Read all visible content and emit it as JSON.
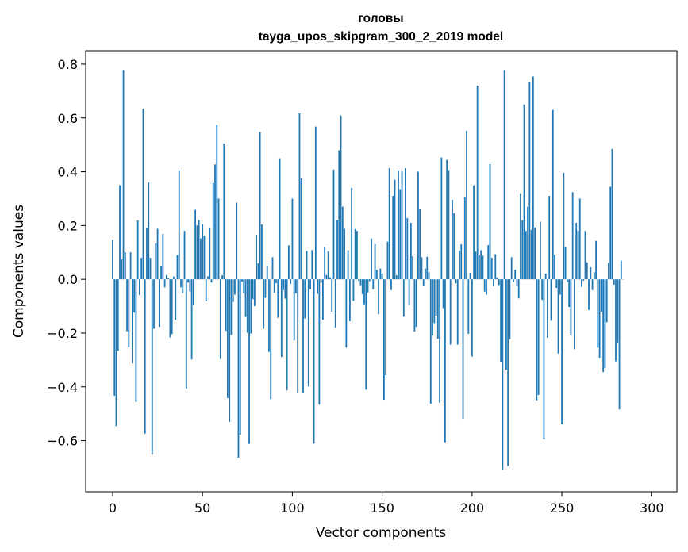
{
  "chart_data": {
    "type": "bar",
    "title_line1": "головы",
    "title_line2": "tayga_upos_skipgram_300_2_2019 model",
    "xlabel": "Vector components",
    "ylabel": "Components values",
    "xlim": [
      -15,
      314
    ],
    "ylim": [
      -0.79,
      0.85
    ],
    "xticks": [
      0,
      50,
      100,
      150,
      200,
      250,
      300
    ],
    "yticks": [
      -0.6,
      -0.4,
      -0.2,
      0.0,
      0.2,
      0.4,
      0.6,
      0.8
    ],
    "ytick_labels": [
      "−0.6",
      "−0.4",
      "−0.2",
      "0.0",
      "0.2",
      "0.4",
      "0.6",
      "0.8"
    ],
    "bar_color": "#1f77b4",
    "values": [
      0.148,
      -0.433,
      -0.546,
      -0.266,
      0.35,
      0.075,
      0.778,
      0.1,
      -0.193,
      -0.253,
      0.1,
      -0.312,
      -0.124,
      -0.456,
      0.22,
      -0.059,
      0.08,
      0.634,
      -0.574,
      0.192,
      0.36,
      0.08,
      -0.652,
      -0.184,
      0.134,
      0.188,
      -0.177,
      0.048,
      0.168,
      -0.03,
      0.016,
      0.004,
      -0.216,
      -0.204,
      0.01,
      -0.15,
      0.09,
      0.405,
      -0.03,
      -0.052,
      0.18,
      -0.406,
      -0.012,
      -0.045,
      -0.298,
      -0.095,
      0.258,
      0.2,
      0.22,
      0.152,
      0.204,
      0.162,
      -0.082,
      0.011,
      0.19,
      -0.012,
      0.358,
      0.427,
      0.575,
      0.3,
      -0.297,
      0.015,
      0.505,
      -0.192,
      -0.442,
      -0.53,
      -0.207,
      -0.084,
      -0.057,
      0.285,
      -0.664,
      -0.578,
      -0.008,
      -0.052,
      -0.14,
      -0.199,
      -0.612,
      -0.202,
      -0.074,
      -0.1,
      0.166,
      0.06,
      0.548,
      0.204,
      -0.184,
      -0.069,
      0.05,
      -0.27,
      -0.446,
      0.082,
      -0.05,
      -0.014,
      -0.143,
      0.45,
      -0.289,
      -0.04,
      -0.072,
      -0.413,
      0.126,
      -0.017,
      0.3,
      -0.227,
      -0.052,
      -0.424,
      0.617,
      0.375,
      -0.423,
      -0.146,
      0.105,
      -0.398,
      -0.037,
      0.109,
      -0.611,
      0.568,
      -0.054,
      -0.466,
      -0.013,
      -0.15,
      0.12,
      0.016,
      0.104,
      0.007,
      -0.12,
      0.408,
      -0.18,
      0.22,
      0.48,
      0.609,
      0.27,
      0.188,
      -0.254,
      0.108,
      -0.156,
      0.34,
      -0.08,
      0.187,
      0.18,
      -0.006,
      -0.022,
      -0.055,
      -0.093,
      -0.41,
      -0.049,
      -0.007,
      0.152,
      -0.037,
      0.131,
      0.035,
      -0.13,
      0.04,
      0.022,
      -0.448,
      -0.356,
      0.14,
      0.413,
      -0.04,
      0.31,
      0.37,
      0.015,
      0.405,
      0.335,
      0.401,
      -0.139,
      0.413,
      0.228,
      -0.096,
      0.21,
      0.086,
      -0.194,
      -0.177,
      0.4,
      0.26,
      0.082,
      -0.023,
      0.04,
      0.084,
      0.026,
      -0.463,
      -0.209,
      -0.163,
      -0.137,
      -0.221,
      -0.459,
      0.453,
      -0.107,
      -0.606,
      0.444,
      0.406,
      -0.243,
      0.296,
      0.246,
      -0.015,
      -0.243,
      0.106,
      0.13,
      -0.519,
      0.306,
      0.552,
      -0.203,
      0.024,
      -0.287,
      0.35,
      0.103,
      0.72,
      0.09,
      0.108,
      0.088,
      -0.046,
      -0.057,
      0.127,
      0.428,
      0.08,
      -0.025,
      0.093,
      0.007,
      -0.021,
      -0.306,
      -0.709,
      0.778,
      -0.337,
      -0.694,
      -0.223,
      0.082,
      -0.01,
      0.036,
      -0.024,
      -0.071,
      0.32,
      0.22,
      0.65,
      0.18,
      0.27,
      0.733,
      0.184,
      0.754,
      0.193,
      -0.45,
      -0.43,
      0.214,
      -0.077,
      -0.595,
      0.021,
      -0.217,
      0.31,
      -0.154,
      0.63,
      0.091,
      -0.032,
      -0.276,
      -0.057,
      -0.539,
      0.396,
      0.12,
      -0.01,
      -0.103,
      -0.209,
      0.324,
      -0.26,
      0.21,
      0.18,
      0.3,
      -0.028,
      -0.005,
      0.18,
      0.063,
      -0.114,
      0.045,
      -0.04,
      0.026,
      0.143,
      -0.255,
      -0.293,
      -0.121,
      -0.345,
      -0.33,
      -0.16,
      0.062,
      0.344,
      0.485,
      -0.02,
      -0.305,
      -0.235,
      -0.484,
      0.07,
      0.0
    ]
  }
}
